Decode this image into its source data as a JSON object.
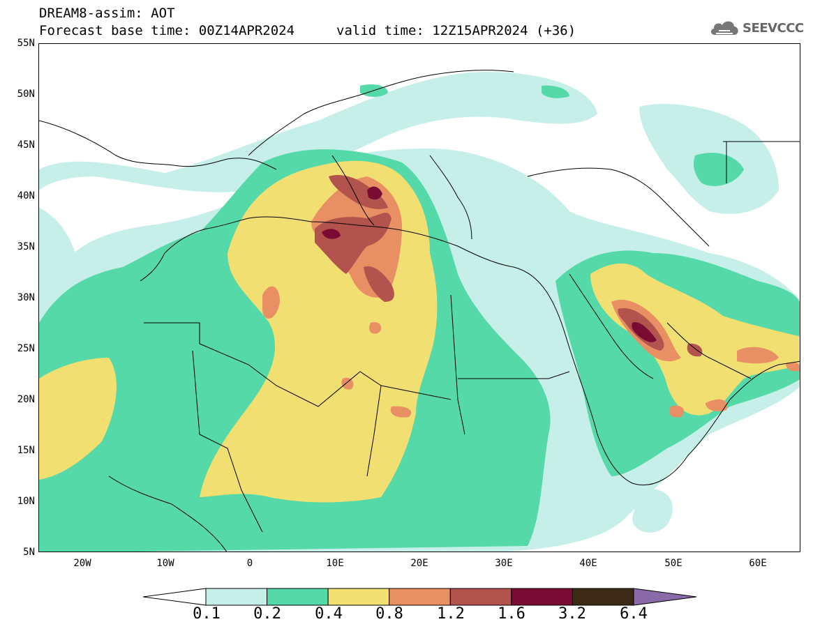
{
  "header": {
    "title_line1": "DREAM8-assim: AOT",
    "base_time": "Forecast base time: 00Z14APR2024",
    "valid_time": "valid time: 12Z15APR2024 (+36)",
    "logo_text": "SEEVCCC"
  },
  "map": {
    "lat_labels": [
      "55N",
      "50N",
      "45N",
      "40N",
      "35N",
      "30N",
      "25N",
      "20N",
      "15N",
      "10N",
      "5N"
    ],
    "lon_labels": [
      "20W",
      "10W",
      "0",
      "10E",
      "20E",
      "30E",
      "40E",
      "50E",
      "60E"
    ],
    "lat_range": [
      5,
      55
    ],
    "lon_range": [
      -25,
      65
    ]
  },
  "colorbar": {
    "values": [
      "0.1",
      "0.2",
      "0.4",
      "0.8",
      "1.2",
      "1.6",
      "3.2",
      "6.4"
    ],
    "colors": [
      "#c6efe9",
      "#55d9a8",
      "#f2df72",
      "#e89064",
      "#b3534e",
      "#7a0c33",
      "#3c2a17",
      "#8a6aa8"
    ]
  },
  "colors": {
    "land_background": "#ffffff",
    "border_lines": "#000000"
  }
}
